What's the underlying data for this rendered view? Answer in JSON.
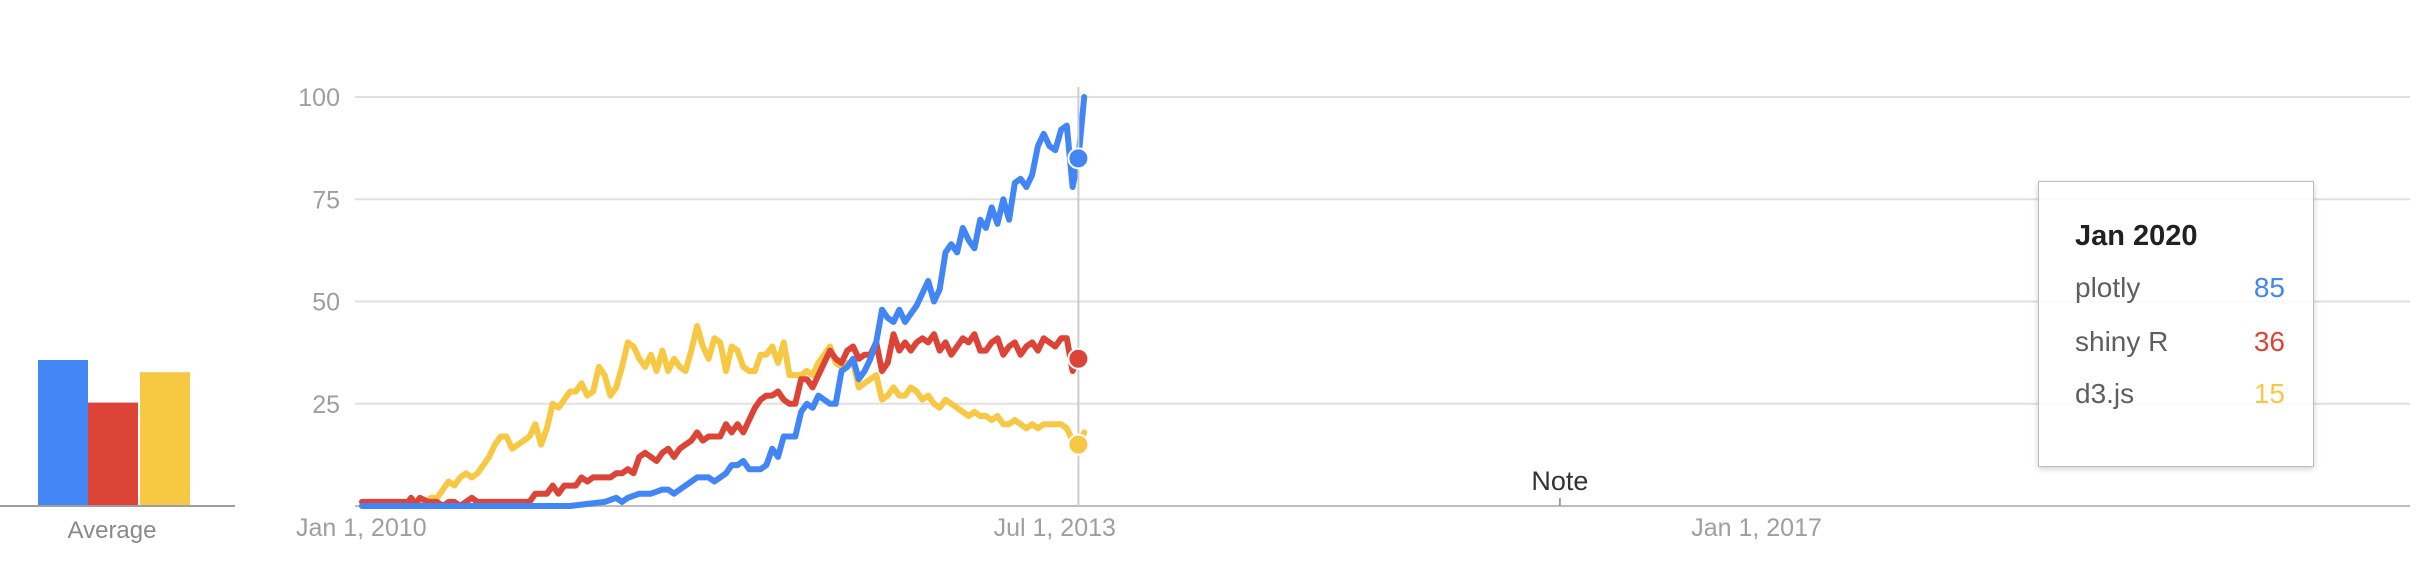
{
  "colors": {
    "plotly": "#4285f4",
    "shiny_r": "#db4437",
    "d3js": "#f7c844",
    "grid": "#e0e0e0",
    "axis": "#9e9e9e"
  },
  "average": {
    "label": "Average",
    "values": [
      24,
      17,
      22
    ]
  },
  "note_label": "Note",
  "tooltip": {
    "title": "Jan 2020",
    "rows": [
      {
        "name": "plotly",
        "value": "85"
      },
      {
        "name": "shiny R",
        "value": "36"
      },
      {
        "name": "d3.js",
        "value": "15"
      }
    ]
  },
  "chart_data": {
    "type": "line",
    "x_start": "2010-01",
    "x_end": "2020-04",
    "ylim": [
      0,
      100
    ],
    "yticks": [
      25,
      50,
      75,
      100
    ],
    "xtick_labels": [
      {
        "date": "2010-01",
        "label": "Jan 1, 2010"
      },
      {
        "date": "2013-07",
        "label": "Jul 1, 2013"
      },
      {
        "date": "2017-01",
        "label": "Jan 1, 2017"
      }
    ],
    "note_date": "2016-01",
    "grid": true,
    "series": [
      {
        "name": "plotly",
        "color": "#4285f4",
        "values": [
          [
            0,
            0
          ],
          [
            72,
            0
          ],
          [
            84,
            1
          ],
          [
            88,
            2
          ],
          [
            90,
            1
          ],
          [
            92,
            2
          ],
          [
            96,
            3
          ],
          [
            100,
            3
          ],
          [
            104,
            4
          ],
          [
            106,
            4
          ],
          [
            108,
            3
          ],
          [
            110,
            4
          ],
          [
            112,
            5
          ],
          [
            114,
            6
          ],
          [
            116,
            7
          ],
          [
            118,
            7
          ],
          [
            120,
            7
          ],
          [
            122,
            6
          ],
          [
            124,
            7
          ],
          [
            126,
            8
          ],
          [
            128,
            10
          ],
          [
            130,
            10
          ],
          [
            132,
            11
          ],
          [
            134,
            9
          ],
          [
            136,
            9
          ],
          [
            138,
            9
          ],
          [
            140,
            10
          ],
          [
            142,
            14
          ],
          [
            144,
            12
          ],
          [
            146,
            17
          ],
          [
            148,
            17
          ],
          [
            150,
            17
          ],
          [
            152,
            23
          ],
          [
            154,
            25
          ],
          [
            156,
            24
          ],
          [
            158,
            27
          ],
          [
            160,
            26
          ],
          [
            162,
            25
          ],
          [
            164,
            25
          ],
          [
            166,
            33
          ],
          [
            168,
            34
          ],
          [
            170,
            36
          ],
          [
            172,
            31
          ],
          [
            174,
            33
          ],
          [
            176,
            36
          ],
          [
            178,
            40
          ],
          [
            180,
            48
          ],
          [
            182,
            46
          ],
          [
            184,
            45
          ],
          [
            186,
            48
          ],
          [
            188,
            45
          ],
          [
            190,
            47
          ],
          [
            192,
            49
          ],
          [
            194,
            52
          ],
          [
            196,
            55
          ],
          [
            198,
            50
          ],
          [
            200,
            53
          ],
          [
            202,
            62
          ],
          [
            204,
            64
          ],
          [
            206,
            62
          ],
          [
            208,
            68
          ],
          [
            210,
            65
          ],
          [
            212,
            63
          ],
          [
            214,
            70
          ],
          [
            216,
            68
          ],
          [
            218,
            73
          ],
          [
            220,
            69
          ],
          [
            222,
            75
          ],
          [
            224,
            70
          ],
          [
            226,
            79
          ],
          [
            228,
            80
          ],
          [
            230,
            78
          ],
          [
            232,
            81
          ],
          [
            234,
            88
          ],
          [
            236,
            91
          ],
          [
            238,
            88
          ],
          [
            240,
            87
          ],
          [
            242,
            92
          ],
          [
            244,
            93
          ],
          [
            246,
            78
          ],
          [
            248,
            85
          ],
          [
            250,
            100
          ]
        ]
      },
      {
        "name": "shiny R",
        "color": "#db4437",
        "values": [
          [
            0,
            1
          ],
          [
            16,
            1
          ],
          [
            17,
            2
          ],
          [
            18,
            1
          ],
          [
            19,
            1
          ],
          [
            20,
            2
          ],
          [
            23,
            1
          ],
          [
            26,
            1
          ],
          [
            28,
            0
          ],
          [
            30,
            1
          ],
          [
            32,
            1
          ],
          [
            34,
            0
          ],
          [
            36,
            1
          ],
          [
            38,
            2
          ],
          [
            40,
            1
          ],
          [
            58,
            1
          ],
          [
            60,
            3
          ],
          [
            64,
            3
          ],
          [
            66,
            5
          ],
          [
            68,
            3
          ],
          [
            70,
            5
          ],
          [
            72,
            5
          ],
          [
            74,
            5
          ],
          [
            76,
            7
          ],
          [
            78,
            6
          ],
          [
            80,
            7
          ],
          [
            82,
            7
          ],
          [
            84,
            7
          ],
          [
            86,
            7
          ],
          [
            88,
            8
          ],
          [
            90,
            8
          ],
          [
            92,
            9
          ],
          [
            94,
            8
          ],
          [
            96,
            12
          ],
          [
            98,
            13
          ],
          [
            100,
            12
          ],
          [
            102,
            11
          ],
          [
            104,
            13
          ],
          [
            106,
            14
          ],
          [
            108,
            12
          ],
          [
            110,
            14
          ],
          [
            112,
            15
          ],
          [
            114,
            16
          ],
          [
            116,
            18
          ],
          [
            118,
            16
          ],
          [
            120,
            17
          ],
          [
            122,
            17
          ],
          [
            124,
            17
          ],
          [
            126,
            20
          ],
          [
            128,
            18
          ],
          [
            130,
            20
          ],
          [
            132,
            18
          ],
          [
            134,
            21
          ],
          [
            136,
            24
          ],
          [
            138,
            26
          ],
          [
            140,
            27
          ],
          [
            142,
            27
          ],
          [
            144,
            28
          ],
          [
            146,
            26
          ],
          [
            148,
            25
          ],
          [
            150,
            25
          ],
          [
            152,
            31
          ],
          [
            154,
            31
          ],
          [
            156,
            29
          ],
          [
            158,
            32
          ],
          [
            160,
            35
          ],
          [
            162,
            38
          ],
          [
            164,
            36
          ],
          [
            166,
            35
          ],
          [
            168,
            38
          ],
          [
            170,
            39
          ],
          [
            172,
            36
          ],
          [
            174,
            37
          ],
          [
            176,
            37
          ],
          [
            178,
            40
          ],
          [
            180,
            33
          ],
          [
            182,
            35
          ],
          [
            184,
            42
          ],
          [
            186,
            38
          ],
          [
            188,
            40
          ],
          [
            190,
            38
          ],
          [
            192,
            40
          ],
          [
            194,
            41
          ],
          [
            196,
            40
          ],
          [
            198,
            42
          ],
          [
            200,
            38
          ],
          [
            202,
            40
          ],
          [
            204,
            37
          ],
          [
            206,
            39
          ],
          [
            208,
            41
          ],
          [
            210,
            40
          ],
          [
            212,
            42
          ],
          [
            214,
            38
          ],
          [
            216,
            38
          ],
          [
            218,
            40
          ],
          [
            220,
            41
          ],
          [
            222,
            37
          ],
          [
            224,
            39
          ],
          [
            226,
            40
          ],
          [
            228,
            37
          ],
          [
            230,
            39
          ],
          [
            232,
            40
          ],
          [
            234,
            38
          ],
          [
            236,
            41
          ],
          [
            238,
            40
          ],
          [
            240,
            39
          ],
          [
            242,
            41
          ],
          [
            244,
            41
          ],
          [
            246,
            33
          ],
          [
            248,
            36
          ],
          [
            250,
            37
          ]
        ]
      },
      {
        "name": "d3.js",
        "color": "#f7c844",
        "values": [
          [
            0,
            0
          ],
          [
            20,
            0
          ],
          [
            22,
            1
          ],
          [
            24,
            2
          ],
          [
            26,
            2
          ],
          [
            28,
            4
          ],
          [
            30,
            6
          ],
          [
            32,
            5
          ],
          [
            34,
            7
          ],
          [
            36,
            8
          ],
          [
            38,
            7
          ],
          [
            40,
            8
          ],
          [
            42,
            10
          ],
          [
            44,
            12
          ],
          [
            46,
            15
          ],
          [
            48,
            17
          ],
          [
            50,
            17
          ],
          [
            52,
            14
          ],
          [
            54,
            15
          ],
          [
            56,
            16
          ],
          [
            58,
            17
          ],
          [
            60,
            20
          ],
          [
            62,
            15
          ],
          [
            64,
            19
          ],
          [
            66,
            25
          ],
          [
            68,
            24
          ],
          [
            70,
            26
          ],
          [
            72,
            28
          ],
          [
            74,
            28
          ],
          [
            76,
            30
          ],
          [
            78,
            27
          ],
          [
            80,
            28
          ],
          [
            82,
            34
          ],
          [
            84,
            32
          ],
          [
            86,
            27
          ],
          [
            88,
            29
          ],
          [
            90,
            34
          ],
          [
            92,
            40
          ],
          [
            94,
            39
          ],
          [
            96,
            36
          ],
          [
            98,
            34
          ],
          [
            100,
            37
          ],
          [
            102,
            33
          ],
          [
            104,
            38
          ],
          [
            106,
            33
          ],
          [
            108,
            36
          ],
          [
            110,
            34
          ],
          [
            112,
            33
          ],
          [
            114,
            38
          ],
          [
            116,
            44
          ],
          [
            118,
            39
          ],
          [
            120,
            36
          ],
          [
            122,
            41
          ],
          [
            124,
            40
          ],
          [
            126,
            33
          ],
          [
            128,
            39
          ],
          [
            130,
            38
          ],
          [
            132,
            34
          ],
          [
            134,
            33
          ],
          [
            136,
            33
          ],
          [
            138,
            37
          ],
          [
            140,
            37
          ],
          [
            142,
            39
          ],
          [
            144,
            35
          ],
          [
            146,
            40
          ],
          [
            148,
            32
          ],
          [
            150,
            32
          ],
          [
            152,
            32
          ],
          [
            154,
            33
          ],
          [
            156,
            32
          ],
          [
            158,
            35
          ],
          [
            160,
            37
          ],
          [
            162,
            39
          ],
          [
            164,
            35
          ],
          [
            166,
            34
          ],
          [
            168,
            35
          ],
          [
            170,
            35
          ],
          [
            172,
            29
          ],
          [
            174,
            30
          ],
          [
            176,
            31
          ],
          [
            178,
            32
          ],
          [
            180,
            26
          ],
          [
            182,
            27
          ],
          [
            184,
            29
          ],
          [
            186,
            27
          ],
          [
            188,
            27
          ],
          [
            190,
            29
          ],
          [
            192,
            28
          ],
          [
            194,
            26
          ],
          [
            196,
            27
          ],
          [
            198,
            25
          ],
          [
            200,
            24
          ],
          [
            202,
            26
          ],
          [
            204,
            25
          ],
          [
            206,
            24
          ],
          [
            208,
            23
          ],
          [
            210,
            22
          ],
          [
            212,
            23
          ],
          [
            214,
            22
          ],
          [
            216,
            22
          ],
          [
            218,
            21
          ],
          [
            220,
            22
          ],
          [
            222,
            20
          ],
          [
            224,
            20
          ],
          [
            226,
            21
          ],
          [
            228,
            20
          ],
          [
            230,
            19
          ],
          [
            232,
            20
          ],
          [
            234,
            19
          ],
          [
            236,
            20
          ],
          [
            238,
            20
          ],
          [
            240,
            20
          ],
          [
            242,
            20
          ],
          [
            244,
            19
          ],
          [
            246,
            16
          ],
          [
            248,
            15
          ],
          [
            250,
            18
          ]
        ]
      }
    ]
  }
}
